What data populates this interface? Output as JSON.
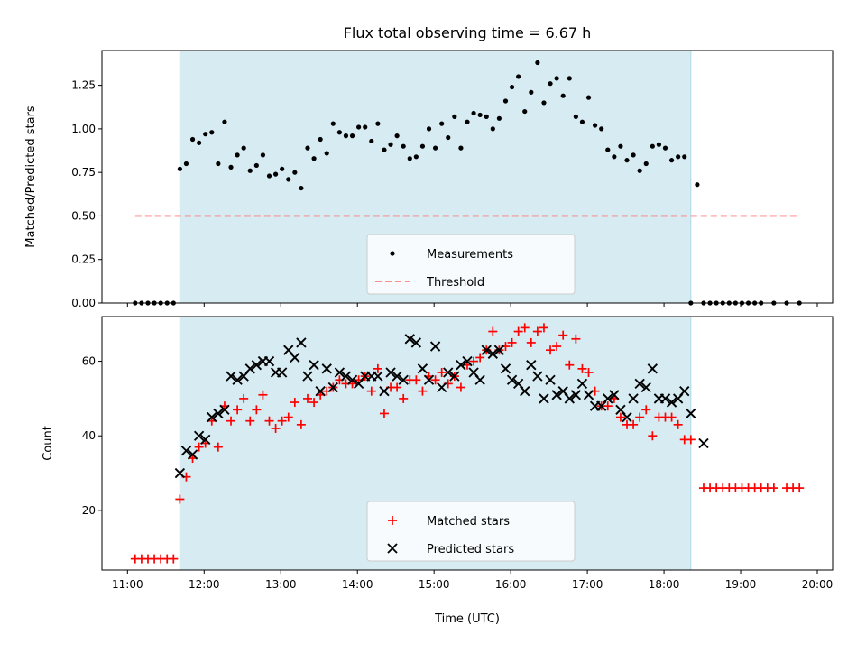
{
  "chart_data": [
    {
      "type": "scatter",
      "title": "Flux total observing time = 6.67 h",
      "xlabel": "",
      "ylabel": "Matched/Predicted stars",
      "xlim": [
        "10:40",
        "20:12"
      ],
      "ylim": [
        0,
        1.45
      ],
      "yticks": [
        "0.00",
        "0.25",
        "0.50",
        "0.75",
        "1.00",
        "1.25"
      ],
      "shaded_span": [
        "11:41",
        "18:21"
      ],
      "legend": {
        "placement": "lower center"
      },
      "series": [
        {
          "name": "Measurements",
          "color": "#000000",
          "marker": "dot",
          "x": [
            "11:06",
            "11:11",
            "11:16",
            "11:21",
            "11:26",
            "11:31",
            "11:36",
            "11:41",
            "11:46",
            "11:51",
            "11:56",
            "12:01",
            "12:06",
            "12:11",
            "12:16",
            "12:21",
            "12:26",
            "12:31",
            "12:36",
            "12:41",
            "12:46",
            "12:51",
            "12:56",
            "13:01",
            "13:06",
            "13:11",
            "13:16",
            "13:21",
            "13:26",
            "13:31",
            "13:36",
            "13:41",
            "13:46",
            "13:51",
            "13:56",
            "14:01",
            "14:06",
            "14:11",
            "14:16",
            "14:21",
            "14:26",
            "14:31",
            "14:36",
            "14:41",
            "14:46",
            "14:51",
            "14:56",
            "15:01",
            "15:06",
            "15:11",
            "15:16",
            "15:21",
            "15:26",
            "15:31",
            "15:36",
            "15:41",
            "15:46",
            "15:51",
            "15:56",
            "16:01",
            "16:06",
            "16:11",
            "16:16",
            "16:21",
            "16:26",
            "16:31",
            "16:36",
            "16:41",
            "16:46",
            "16:51",
            "16:56",
            "17:01",
            "17:06",
            "17:11",
            "17:16",
            "17:21",
            "17:26",
            "17:31",
            "17:36",
            "17:41",
            "17:46",
            "17:51",
            "17:56",
            "18:01",
            "18:06",
            "18:11",
            "18:16",
            "18:21",
            "18:26",
            "18:31",
            "18:36",
            "18:41",
            "18:46",
            "18:51",
            "18:56",
            "19:01",
            "19:06",
            "19:11",
            "19:16",
            "19:26",
            "19:36",
            "19:46"
          ],
          "y": [
            0,
            0,
            0,
            0,
            0,
            0,
            0,
            0.77,
            0.8,
            0.94,
            0.92,
            0.97,
            0.98,
            0.8,
            1.04,
            0.78,
            0.85,
            0.89,
            0.76,
            0.79,
            0.85,
            0.73,
            0.74,
            0.77,
            0.71,
            0.75,
            0.66,
            0.89,
            0.83,
            0.94,
            0.86,
            1.03,
            0.98,
            0.96,
            0.96,
            1.01,
            1.01,
            0.93,
            1.03,
            0.88,
            0.91,
            0.96,
            0.9,
            0.83,
            0.84,
            0.9,
            1.0,
            0.89,
            1.03,
            0.95,
            1.07,
            0.89,
            1.04,
            1.09,
            1.08,
            1.07,
            1.0,
            1.06,
            1.16,
            1.24,
            1.3,
            1.1,
            1.21,
            1.38,
            1.15,
            1.26,
            1.29,
            1.19,
            1.29,
            1.07,
            1.04,
            1.18,
            1.02,
            1.0,
            0.88,
            0.84,
            0.9,
            0.82,
            0.85,
            0.76,
            0.8,
            0.9,
            0.91,
            0.89,
            0.82,
            0.84,
            0.84,
            0,
            0.68,
            0,
            0,
            0,
            0,
            0,
            0,
            0,
            0,
            0,
            0,
            0,
            0,
            0
          ]
        },
        {
          "name": "Threshold",
          "color": "#ff7f7f",
          "style": "dashed",
          "x": [
            "11:06",
            "19:46"
          ],
          "y": [
            0.5,
            0.5
          ]
        }
      ]
    },
    {
      "type": "scatter",
      "title": "",
      "xlabel": "Time (UTC)",
      "ylabel": "Count",
      "xlim": [
        "10:40",
        "20:12"
      ],
      "ylim": [
        4,
        72
      ],
      "yticks": [
        "20",
        "40",
        "60"
      ],
      "xticks": [
        "11:00",
        "12:00",
        "13:00",
        "14:00",
        "15:00",
        "16:00",
        "17:00",
        "18:00",
        "19:00",
        "20:00"
      ],
      "shaded_span": [
        "11:41",
        "18:21"
      ],
      "legend": {
        "placement": "lower center"
      },
      "series": [
        {
          "name": "Matched stars",
          "color": "#ff0000",
          "marker": "plus",
          "x": [
            "11:06",
            "11:11",
            "11:16",
            "11:21",
            "11:26",
            "11:31",
            "11:36",
            "11:41",
            "11:46",
            "11:51",
            "11:56",
            "12:01",
            "12:06",
            "12:11",
            "12:16",
            "12:21",
            "12:26",
            "12:31",
            "12:36",
            "12:41",
            "12:46",
            "12:51",
            "12:56",
            "13:01",
            "13:06",
            "13:11",
            "13:16",
            "13:21",
            "13:26",
            "13:31",
            "13:36",
            "13:41",
            "13:46",
            "13:51",
            "13:56",
            "14:01",
            "14:06",
            "14:11",
            "14:16",
            "14:21",
            "14:26",
            "14:31",
            "14:36",
            "14:41",
            "14:46",
            "14:51",
            "14:56",
            "15:01",
            "15:06",
            "15:11",
            "15:16",
            "15:21",
            "15:26",
            "15:31",
            "15:36",
            "15:41",
            "15:46",
            "15:51",
            "15:56",
            "16:01",
            "16:06",
            "16:11",
            "16:16",
            "16:21",
            "16:26",
            "16:31",
            "16:36",
            "16:41",
            "16:46",
            "16:51",
            "16:56",
            "17:01",
            "17:06",
            "17:11",
            "17:16",
            "17:21",
            "17:26",
            "17:31",
            "17:36",
            "17:41",
            "17:46",
            "17:51",
            "17:56",
            "18:01",
            "18:06",
            "18:11",
            "18:16",
            "18:21",
            "18:31",
            "18:36",
            "18:41",
            "18:46",
            "18:51",
            "18:56",
            "19:01",
            "19:06",
            "19:11",
            "19:16",
            "19:21",
            "19:26",
            "19:36",
            "19:41",
            "19:46"
          ],
          "y": [
            7,
            7,
            7,
            7,
            7,
            7,
            7,
            23,
            29,
            34,
            37,
            38,
            44,
            37,
            48,
            44,
            47,
            50,
            44,
            47,
            51,
            44,
            42,
            44,
            45,
            49,
            43,
            50,
            49,
            51,
            52,
            53,
            55,
            54,
            54,
            55,
            56,
            52,
            58,
            46,
            53,
            53,
            50,
            55,
            55,
            52,
            56,
            55,
            57,
            54,
            56,
            53,
            59,
            60,
            61,
            63,
            68,
            63,
            64,
            65,
            68,
            69,
            65,
            68,
            69,
            63,
            64,
            67,
            59,
            66,
            58,
            57,
            52,
            48,
            48,
            50,
            45,
            43,
            43,
            45,
            47,
            40,
            45,
            45,
            45,
            43,
            39,
            39,
            26,
            26,
            26,
            26,
            26,
            26,
            26,
            26,
            26,
            26,
            26,
            26,
            26,
            26,
            26
          ]
        },
        {
          "name": "Predicted stars",
          "color": "#000000",
          "marker": "x",
          "x": [
            "11:41",
            "11:46",
            "11:51",
            "11:56",
            "12:01",
            "12:06",
            "12:11",
            "12:16",
            "12:21",
            "12:26",
            "12:31",
            "12:36",
            "12:41",
            "12:46",
            "12:51",
            "12:56",
            "13:01",
            "13:06",
            "13:11",
            "13:16",
            "13:21",
            "13:26",
            "13:31",
            "13:36",
            "13:41",
            "13:46",
            "13:51",
            "13:56",
            "14:01",
            "14:06",
            "14:11",
            "14:16",
            "14:21",
            "14:26",
            "14:31",
            "14:36",
            "14:41",
            "14:46",
            "14:51",
            "14:56",
            "15:01",
            "15:06",
            "15:11",
            "15:16",
            "15:21",
            "15:26",
            "15:31",
            "15:36",
            "15:41",
            "15:46",
            "15:51",
            "15:56",
            "16:01",
            "16:06",
            "16:11",
            "16:16",
            "16:21",
            "16:26",
            "16:31",
            "16:36",
            "16:41",
            "16:46",
            "16:51",
            "16:56",
            "17:01",
            "17:06",
            "17:11",
            "17:16",
            "17:21",
            "17:26",
            "17:31",
            "17:36",
            "17:41",
            "17:46",
            "17:51",
            "17:56",
            "18:01",
            "18:06",
            "18:11",
            "18:16",
            "18:21",
            "18:31"
          ],
          "y": [
            30,
            36,
            35,
            40,
            39,
            45,
            46,
            47,
            56,
            55,
            56,
            58,
            59,
            60,
            60,
            57,
            57,
            63,
            61,
            65,
            56,
            59,
            52,
            58,
            53,
            57,
            56,
            55,
            54,
            56,
            56,
            56,
            52,
            57,
            56,
            55,
            66,
            65,
            58,
            55,
            64,
            53,
            57,
            56,
            59,
            60,
            57,
            55,
            63,
            62,
            63,
            58,
            55,
            54,
            52,
            59,
            56,
            50,
            55,
            51,
            52,
            50,
            51,
            54,
            51,
            48,
            48,
            50,
            51,
            47,
            45,
            50,
            54,
            53,
            58,
            50,
            50,
            49,
            50,
            52,
            46,
            38
          ]
        }
      ]
    }
  ]
}
